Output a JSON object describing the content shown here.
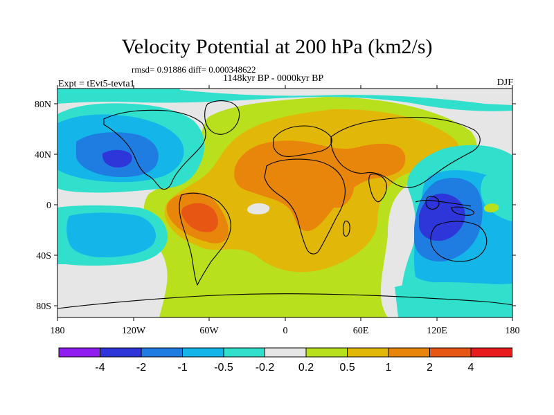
{
  "title": "Velocity Potential at 200 hPa (km2/s)",
  "stats": "rmsd= 0.91886  diff= 0.000348622",
  "period": "1148kyr BP - 0000kyr BP",
  "experiment": "Expt = tEvt5-tevta1",
  "season": "DJF",
  "x_tick_labels": [
    "180",
    "120W",
    "60W",
    "0",
    "60E",
    "120E",
    "180"
  ],
  "y_tick_labels": [
    "80N",
    "40N",
    "0",
    "40S",
    "80S"
  ],
  "colorbar": {
    "colors": [
      "#8f1cf0",
      "#2e36d9",
      "#1f7ce0",
      "#14b6ea",
      "#30e0cc",
      "#e6e6e6",
      "#b8e01c",
      "#e2b808",
      "#e8860c",
      "#e85614",
      "#e81c1c"
    ],
    "labels": [
      "-4",
      "-2",
      "-1",
      "-0.5",
      "-0.2",
      "0.2",
      "0.5",
      "1",
      "2",
      "4"
    ]
  }
}
